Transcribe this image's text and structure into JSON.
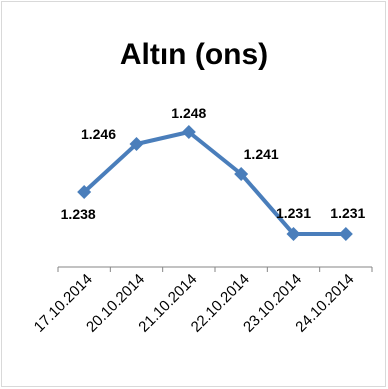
{
  "chart_data": {
    "type": "line",
    "title": "Altın (ons)",
    "categories": [
      "17.10.2014",
      "20.10.2014",
      "21.10.2014",
      "22.10.2014",
      "23.10.2014",
      "24.10.2014"
    ],
    "series": [
      {
        "values": [
          1.238,
          1.246,
          1.248,
          1.241,
          1.231,
          1.231
        ],
        "data_labels": [
          "1.238",
          "1.246",
          "1.248",
          "1.241",
          "1.231",
          "1.231"
        ],
        "color": "#4a7ebb",
        "marker": "diamond"
      }
    ],
    "ylim": [
      1.22,
      1.26
    ],
    "y_axis_visible": false,
    "grid": false,
    "legend": "none"
  }
}
